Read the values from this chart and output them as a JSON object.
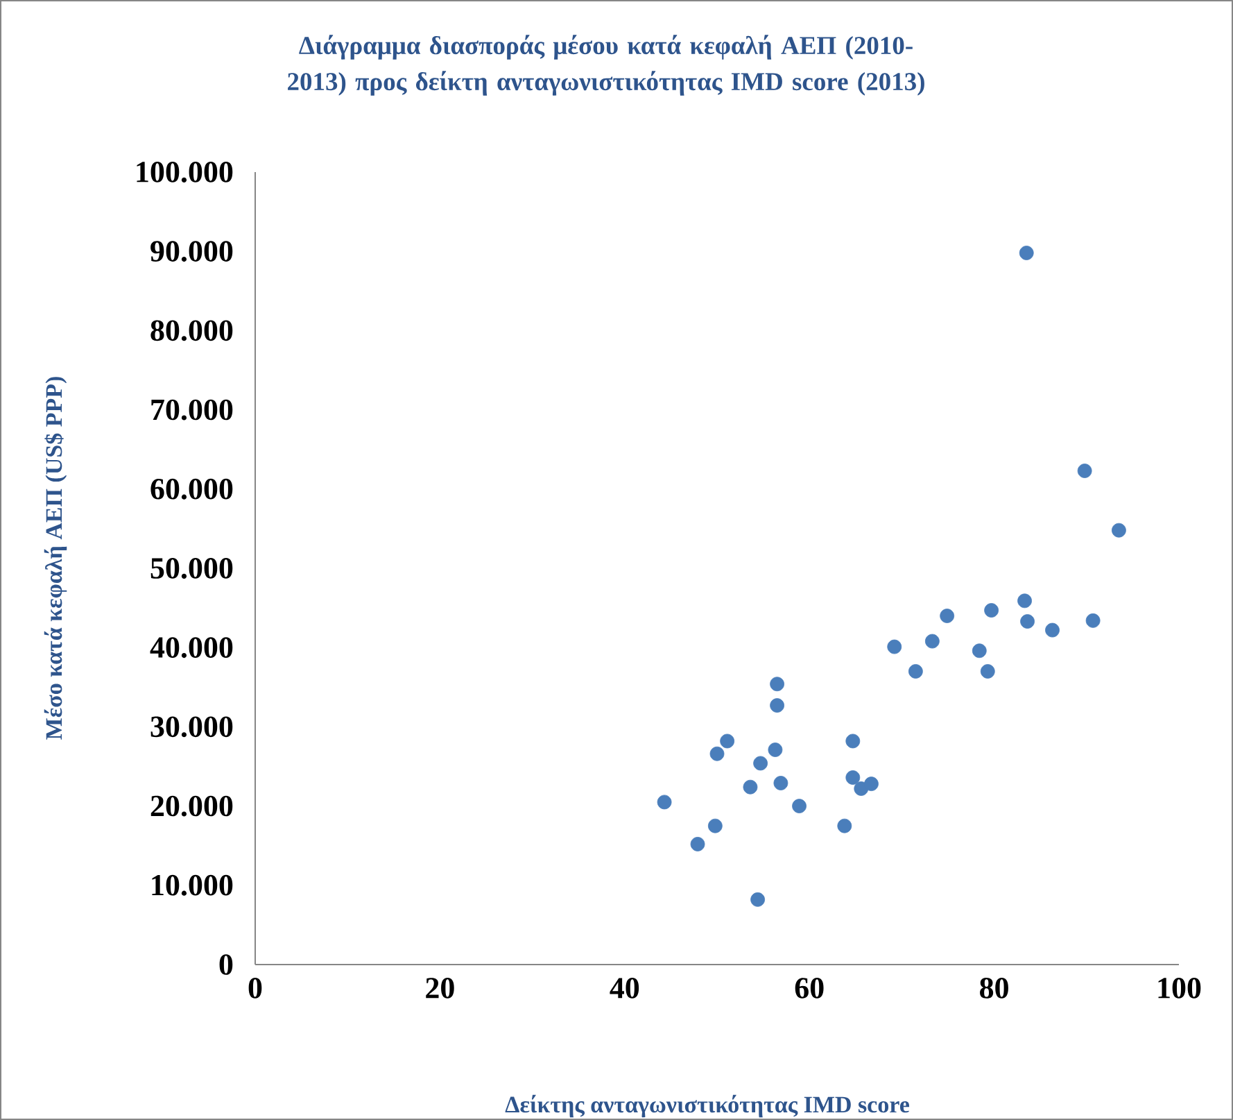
{
  "chart_data": {
    "type": "scatter",
    "title": "Διάγραμμα διασποράς μέσου κατά κεφαλή ΑΕΠ (2010-2013) προς δείκτη ανταγωνιστικότητας IMD score (2013)",
    "xlabel": "Δείκτης ανταγωνιστικότητας IMD score",
    "ylabel": "Μέσο κατά κεφαλή ΑΕΠ (US$ PPP)",
    "x": [
      44.3,
      47.9,
      49.8,
      50.0,
      51.1,
      53.6,
      54.7,
      54.4,
      56.3,
      56.5,
      56.5,
      56.9,
      58.9,
      63.8,
      64.7,
      64.7,
      65.6,
      66.7,
      69.2,
      71.5,
      73.3,
      74.9,
      78.4,
      79.3,
      79.7,
      83.3,
      83.5,
      83.6,
      86.3,
      89.8,
      90.7,
      93.5
    ],
    "series": [
      {
        "color": "#4a7ebb",
        "values": [
          20500,
          15200,
          17500,
          26600,
          28200,
          22400,
          25400,
          8200,
          27100,
          32700,
          35400,
          22900,
          20000,
          17500,
          23600,
          28200,
          22200,
          22800,
          40100,
          37000,
          40800,
          44000,
          39600,
          37000,
          44700,
          45900,
          89800,
          43300,
          42200,
          62300,
          43400,
          54800
        ]
      }
    ],
    "marker": "circle",
    "grid": false,
    "legend": false,
    "xlim": [
      0,
      100
    ],
    "xticks": [
      0,
      20,
      40,
      60,
      80,
      100
    ],
    "ylim": [
      0,
      100000
    ],
    "yticks": [
      {
        "value": 0,
        "label": "0"
      },
      {
        "value": 10000,
        "label": "10.000"
      },
      {
        "value": 20000,
        "label": "20.000"
      },
      {
        "value": 30000,
        "label": "30.000"
      },
      {
        "value": 40000,
        "label": "40.000"
      },
      {
        "value": 50000,
        "label": "50.000"
      },
      {
        "value": 60000,
        "label": "60.000"
      },
      {
        "value": 70000,
        "label": "70.000"
      },
      {
        "value": 80000,
        "label": "80.000"
      },
      {
        "value": 90000,
        "label": "90.000"
      },
      {
        "value": 100000,
        "label": "100.000"
      }
    ]
  }
}
